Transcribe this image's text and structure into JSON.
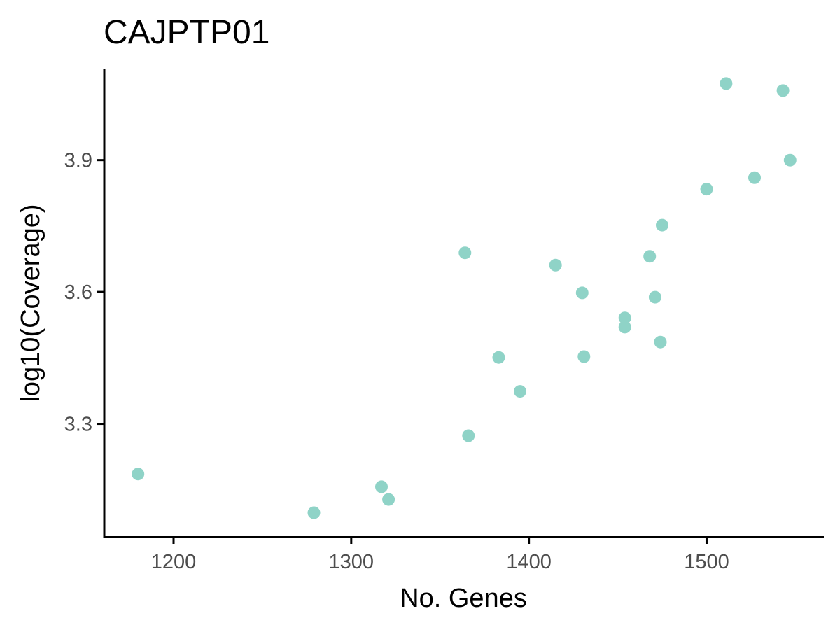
{
  "chart_data": {
    "type": "scatter",
    "title": "CAJPTP01",
    "xlabel": "No. Genes",
    "ylabel": "log10(Coverage)",
    "xlim": [
      1161,
      1566
    ],
    "ylim": [
      3.043,
      4.108
    ],
    "xticks": [
      1200,
      1300,
      1400,
      1500
    ],
    "yticks": [
      3.3,
      3.6,
      3.9
    ],
    "xtick_labels": [
      "1200",
      "1300",
      "1400",
      "1500"
    ],
    "ytick_labels": [
      "3.3",
      "3.6",
      "3.9"
    ],
    "point_color": "#8fd3c7",
    "grid": false,
    "series": [
      {
        "name": "samples",
        "points": [
          {
            "x": 1180,
            "y": 3.186
          },
          {
            "x": 1279,
            "y": 3.098
          },
          {
            "x": 1317,
            "y": 3.157
          },
          {
            "x": 1321,
            "y": 3.128
          },
          {
            "x": 1364,
            "y": 3.689
          },
          {
            "x": 1366,
            "y": 3.273
          },
          {
            "x": 1383,
            "y": 3.451
          },
          {
            "x": 1395,
            "y": 3.374
          },
          {
            "x": 1415,
            "y": 3.661
          },
          {
            "x": 1430,
            "y": 3.598
          },
          {
            "x": 1431,
            "y": 3.453
          },
          {
            "x": 1454,
            "y": 3.541
          },
          {
            "x": 1454,
            "y": 3.52
          },
          {
            "x": 1468,
            "y": 3.681
          },
          {
            "x": 1471,
            "y": 3.588
          },
          {
            "x": 1474,
            "y": 3.486
          },
          {
            "x": 1475,
            "y": 3.752
          },
          {
            "x": 1500,
            "y": 3.834
          },
          {
            "x": 1511,
            "y": 4.074
          },
          {
            "x": 1527,
            "y": 3.86
          },
          {
            "x": 1543,
            "y": 4.058
          },
          {
            "x": 1547,
            "y": 3.9
          }
        ]
      }
    ]
  }
}
